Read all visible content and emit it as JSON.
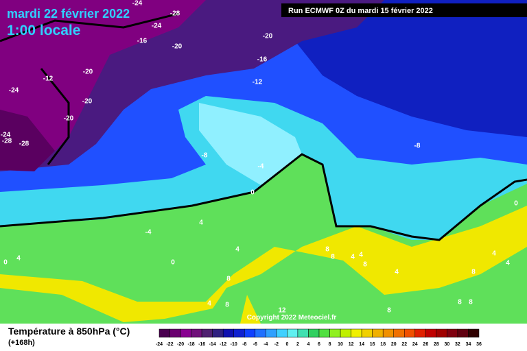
{
  "header": {
    "date": "mardi 22 février 2022",
    "time": "1:00 locale",
    "run": "Run ECMWF 0Z du mardi 15 février 2022"
  },
  "copyright": "Copyright 2022 Meteociel.fr",
  "legend": {
    "title": "Température à 850hPa (°C)",
    "subtitle": "(+168h)",
    "ticks": [
      "-24",
      "-22",
      "-20",
      "-18",
      "-16",
      "-14",
      "-12",
      "-10",
      "-8",
      "-6",
      "-4",
      "-2",
      "0",
      "2",
      "4",
      "6",
      "8",
      "10",
      "12",
      "14",
      "16",
      "18",
      "20",
      "22",
      "24",
      "26",
      "28",
      "30",
      "32",
      "34",
      "36"
    ],
    "colors": [
      "#4a0050",
      "#6a0070",
      "#880090",
      "#70107a",
      "#502070",
      "#302080",
      "#1010b0",
      "#1020d0",
      "#1040ff",
      "#2070ff",
      "#30a0ff",
      "#40d0ff",
      "#60f0f0",
      "#40e0b0",
      "#30d060",
      "#50e040",
      "#90f020",
      "#c0f000",
      "#f0f000",
      "#f0d000",
      "#f0b000",
      "#f09000",
      "#f07000",
      "#f05000",
      "#e02000",
      "#c00000",
      "#a00000",
      "#800010",
      "#600010",
      "#300000"
    ]
  },
  "contour_labels": [
    "-24",
    "-28",
    "-24",
    "-20",
    "-16",
    "-20",
    "-16",
    "-12",
    "-20",
    "-12",
    "-24",
    "-20",
    "-20",
    "-24",
    "-28",
    "-28",
    "-8",
    "-8",
    "-4",
    "0",
    "0",
    "4",
    "-4",
    "4",
    "0",
    "0",
    "4",
    "8",
    "4",
    "8",
    "8",
    "8",
    "4",
    "4",
    "8",
    "4",
    "4",
    "4",
    "8",
    "8",
    "8",
    "12",
    "8"
  ]
}
